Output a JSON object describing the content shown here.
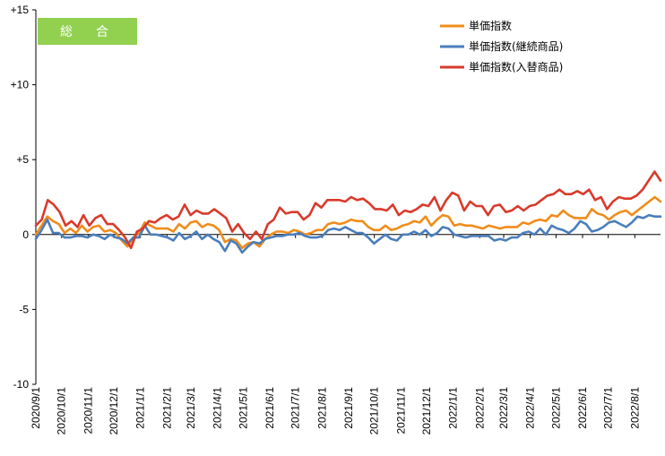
{
  "badge": {
    "text": "総　合",
    "color": "#92d050"
  },
  "chart_data": {
    "type": "line",
    "ylim": [
      -10,
      15
    ],
    "yticks": [
      15,
      10,
      5,
      0,
      -5,
      -10
    ],
    "ytick_labels": [
      "+15",
      "+10",
      "+5",
      "0",
      "-5",
      "-10"
    ],
    "x_start": "2020-09-01",
    "x_end": "2022-08-31",
    "xtick_labels": [
      "2020/9/1",
      "2020/10/1",
      "2020/11/1",
      "2020/12/1",
      "2021/1/1",
      "2021/2/1",
      "2021/3/1",
      "2021/4/1",
      "2021/5/1",
      "2021/6/1",
      "2021/7/1",
      "2021/8/1",
      "2021/9/1",
      "2021/10/1",
      "2021/11/1",
      "2021/12/1",
      "2022/1/1",
      "2022/2/1",
      "2022/3/1",
      "2022/4/1",
      "2022/5/1",
      "2022/6/1",
      "2022/7/1",
      "2022/8/1"
    ],
    "grid": false,
    "legend_position": "top-right",
    "series": [
      {
        "name": "単価指数",
        "color": "#f08c1a",
        "values": [
          0.0,
          0.6,
          1.2,
          0.9,
          0.7,
          0.1,
          0.4,
          0.1,
          0.6,
          0.2,
          0.5,
          0.6,
          0.2,
          0.3,
          0.1,
          -0.4,
          -0.8,
          -0.2,
          0.1,
          0.8,
          0.6,
          0.4,
          0.4,
          0.4,
          0.2,
          0.7,
          0.4,
          0.8,
          0.9,
          0.5,
          0.7,
          0.6,
          0.3,
          -0.5,
          -0.3,
          -0.4,
          -0.9,
          -0.6,
          -0.5,
          -0.8,
          -0.3,
          0.0,
          0.2,
          0.2,
          0.1,
          0.3,
          0.2,
          0.0,
          0.1,
          0.3,
          0.3,
          0.7,
          0.8,
          0.7,
          0.8,
          1.0,
          0.9,
          0.9,
          0.5,
          0.3,
          0.3,
          0.6,
          0.3,
          0.4,
          0.6,
          0.7,
          0.9,
          0.8,
          1.2,
          0.6,
          1.0,
          1.3,
          1.2,
          0.6,
          0.7,
          0.6,
          0.6,
          0.5,
          0.4,
          0.6,
          0.5,
          0.4,
          0.5,
          0.5,
          0.5,
          0.8,
          0.7,
          0.9,
          1.0,
          0.9,
          1.3,
          1.2,
          1.6,
          1.3,
          1.1,
          1.1,
          1.1,
          1.7,
          1.4,
          1.3,
          1.0,
          1.3,
          1.5,
          1.6,
          1.3,
          1.6,
          1.9,
          2.2,
          2.5,
          2.2
        ]
      },
      {
        "name": "単価指数(継続商品)",
        "color": "#4a7ebb",
        "values": [
          -0.3,
          0.3,
          1.0,
          0.1,
          0.1,
          -0.2,
          -0.2,
          -0.1,
          -0.1,
          -0.2,
          0.0,
          -0.1,
          -0.3,
          0.0,
          -0.2,
          -0.3,
          -0.6,
          -0.2,
          -0.2,
          0.6,
          0.0,
          0.0,
          -0.1,
          -0.2,
          -0.4,
          0.1,
          -0.3,
          -0.1,
          0.2,
          -0.3,
          0.0,
          -0.3,
          -0.5,
          -1.1,
          -0.4,
          -0.6,
          -1.2,
          -0.8,
          -0.5,
          -0.6,
          -0.3,
          -0.2,
          -0.1,
          -0.1,
          0.0,
          0.0,
          0.1,
          -0.1,
          -0.2,
          -0.2,
          -0.1,
          0.3,
          0.4,
          0.3,
          0.5,
          0.3,
          0.1,
          0.1,
          -0.2,
          -0.6,
          -0.3,
          0.0,
          -0.3,
          -0.4,
          0.0,
          0.0,
          0.2,
          0.0,
          0.3,
          -0.1,
          0.1,
          0.5,
          0.4,
          0.0,
          -0.1,
          -0.2,
          -0.1,
          -0.1,
          -0.1,
          -0.1,
          -0.4,
          -0.3,
          -0.4,
          -0.2,
          -0.2,
          0.1,
          0.2,
          0.0,
          0.4,
          0.0,
          0.6,
          0.4,
          0.3,
          0.1,
          0.4,
          0.9,
          0.7,
          0.2,
          0.3,
          0.5,
          0.8,
          0.9,
          0.7,
          0.5,
          0.8,
          1.2,
          1.1,
          1.3,
          1.2,
          1.2
        ]
      },
      {
        "name": "単価指数(入替商品)",
        "color": "#d93a2b",
        "values": [
          0.6,
          1.0,
          2.3,
          2.0,
          1.5,
          0.6,
          0.9,
          0.5,
          1.3,
          0.6,
          1.1,
          1.3,
          0.7,
          0.7,
          0.3,
          -0.2,
          -0.9,
          0.2,
          0.4,
          0.9,
          0.8,
          1.1,
          1.3,
          1.0,
          1.2,
          2.0,
          1.3,
          1.6,
          1.4,
          1.4,
          1.7,
          1.4,
          1.1,
          0.2,
          0.7,
          0.1,
          -0.3,
          0.2,
          -0.3,
          0.7,
          1.0,
          1.8,
          1.4,
          1.5,
          1.5,
          1.0,
          1.3,
          2.1,
          1.8,
          2.3,
          2.3,
          2.3,
          2.2,
          2.5,
          2.3,
          2.4,
          2.1,
          1.7,
          1.7,
          1.6,
          2.0,
          1.3,
          1.6,
          1.5,
          1.7,
          2.0,
          1.9,
          2.5,
          1.6,
          2.3,
          2.8,
          2.6,
          1.6,
          2.2,
          1.9,
          1.9,
          1.3,
          1.9,
          2.0,
          1.5,
          1.6,
          1.9,
          1.6,
          1.9,
          2.0,
          2.3,
          2.6,
          2.7,
          3.0,
          2.7,
          2.7,
          2.9,
          2.7,
          3.0,
          2.3,
          2.5,
          1.7,
          2.2,
          2.5,
          2.4,
          2.4,
          2.6,
          3.0,
          3.6,
          4.2,
          3.6
        ]
      }
    ]
  }
}
